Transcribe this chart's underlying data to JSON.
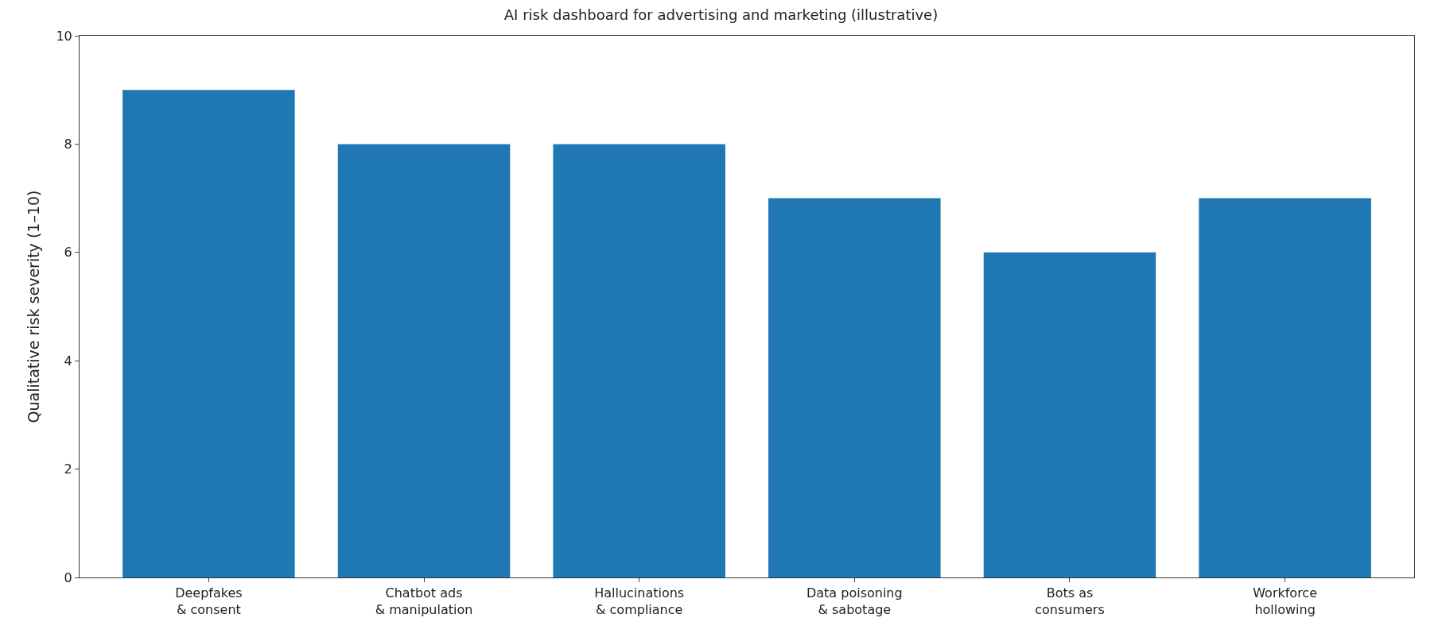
{
  "chart_data": {
    "type": "bar",
    "title": "AI risk dashboard for advertising and marketing (illustrative)",
    "ylabel": "Qualitative risk severity (1–10)",
    "categories": [
      "Deepfakes\n& consent",
      "Chatbot ads\n& manipulation",
      "Hallucinations\n& compliance",
      "Data poisoning\n& sabotage",
      "Bots as\nconsumers",
      "Workforce\nhollowing"
    ],
    "values": [
      9,
      8,
      8,
      7,
      6,
      7
    ],
    "color": "#1f77b4",
    "ylim": [
      0,
      10
    ],
    "yticks": [
      0,
      2,
      4,
      6,
      8,
      10
    ]
  }
}
